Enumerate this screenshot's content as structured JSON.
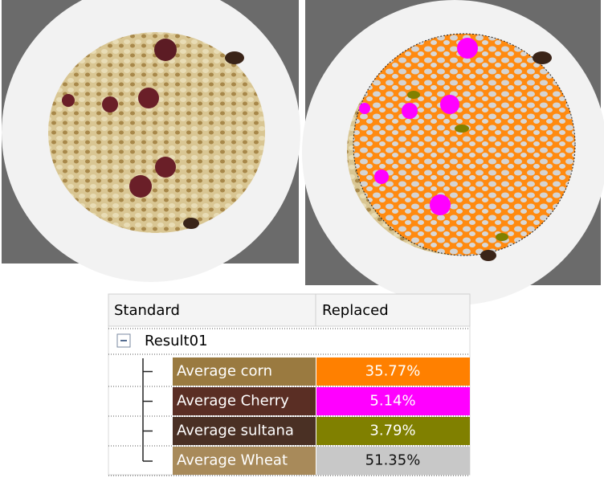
{
  "table": {
    "headers": [
      "Standard",
      "Replaced"
    ],
    "group": "Result01",
    "rows": [
      [
        "Average corn",
        "35.77%"
      ],
      [
        "Average Cherry",
        "5.14%"
      ],
      [
        "Average sultana",
        "3.79%"
      ],
      [
        "Average Wheat",
        "51.35%"
      ]
    ]
  }
}
